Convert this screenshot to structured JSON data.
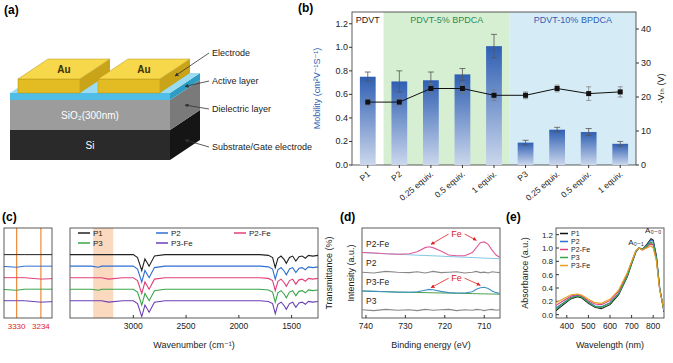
{
  "diagram": {
    "panel": "(a)",
    "layers": [
      {
        "callout": "Electrode",
        "texts": [
          "Au",
          "Au"
        ]
      },
      {
        "callout": "Active layer",
        "texts": []
      },
      {
        "callout": "Dielectric layer",
        "texts": [
          "SiO₂(300nm)"
        ]
      },
      {
        "callout": "Substrate/Gate electrode",
        "texts": [
          "Si"
        ]
      }
    ]
  },
  "chart_data": [
    {
      "panel": "(b)",
      "type": "bar",
      "categories": [
        "P1",
        "P2",
        "0.25 equiv.",
        "0.5 equiv.",
        "1 equiv.",
        "P3",
        "0.25 equiv.",
        "0.5 equiv.",
        "1 equiv."
      ],
      "groups": [
        {
          "label": "PDVT",
          "size": 1,
          "color": "#ffffff"
        },
        {
          "label": "PDVT-5% BPDCA",
          "size": 4,
          "color": "#d6efd2"
        },
        {
          "label": "PDVT-10% BPDCA",
          "size": 4,
          "color": "#d5ecf6"
        }
      ],
      "series": [
        {
          "type": "bar",
          "color": "#2f5fb3",
          "values": [
            0.75,
            0.71,
            0.72,
            0.77,
            1.01,
            0.19,
            0.3,
            0.28,
            0.18
          ],
          "errors": [
            0.04,
            0.09,
            0.07,
            0.05,
            0.1,
            0.02,
            0.02,
            0.03,
            0.02
          ]
        },
        {
          "type": "line",
          "axis": "y2",
          "color": "#111111",
          "marker": "square",
          "values": [
            18.5,
            18.5,
            22.5,
            22.5,
            20.5,
            20.5,
            22.5,
            21,
            21.5
          ],
          "errors": [
            1,
            1,
            1.5,
            1.5,
            1.5,
            1,
            1,
            2,
            1.5
          ]
        }
      ],
      "ylabel": "Mobility (cm²V⁻¹S⁻¹)",
      "y2label": "-Vₜₕ (V)",
      "ylim": [
        0,
        1.3
      ],
      "yticks": [
        {
          "value": 0,
          "label": "0.0"
        },
        0.2,
        0.4,
        0.6,
        0.8,
        {
          "value": 1,
          "label": "1.0"
        },
        1.2
      ],
      "y2lim": [
        0,
        45
      ],
      "y2ticks": [
        0,
        10,
        20,
        30,
        40
      ]
    },
    {
      "panel": "(c)",
      "type": "line",
      "x": [
        3600,
        3400,
        3330,
        3300,
        3234,
        3100,
        3000,
        2960,
        2920,
        2890,
        2850,
        2800,
        2700,
        2400,
        2000,
        1800,
        1720,
        1680,
        1655,
        1630,
        1600,
        1570,
        1550,
        1520,
        1490,
        1460,
        1430,
        1400,
        1370,
        1340,
        1300,
        1250
      ],
      "series": [
        {
          "name": "P1",
          "color": "#222222",
          "values": [
            88,
            88,
            88,
            88,
            88,
            88,
            88,
            84,
            66,
            82,
            72,
            86,
            88,
            88,
            88,
            88,
            87,
            84,
            70,
            83,
            86,
            81,
            76,
            84,
            86,
            79,
            85,
            86,
            83,
            87,
            86,
            87
          ]
        },
        {
          "name": "P2",
          "color": "#2f6fd1",
          "values": [
            72,
            72,
            70.5,
            72,
            72,
            72,
            72,
            68,
            50,
            66,
            56,
            70,
            72,
            72,
            72,
            72,
            71,
            68,
            54,
            67,
            70,
            65,
            60,
            68,
            70,
            63,
            69,
            70,
            67,
            71,
            70,
            71
          ]
        },
        {
          "name": "P2-Fe",
          "color": "#e0407a",
          "values": [
            56,
            56,
            56,
            56,
            54,
            56,
            56,
            52,
            34,
            50,
            40,
            54,
            56,
            56,
            56,
            56,
            55,
            52,
            38,
            51,
            54,
            49,
            44,
            52,
            54,
            47,
            53,
            54,
            51,
            55,
            54,
            55
          ]
        },
        {
          "name": "P3",
          "color": "#3aa64a",
          "values": [
            40,
            40,
            38.5,
            40,
            40,
            40,
            40,
            36,
            18,
            34,
            24,
            38,
            40,
            40,
            40,
            40,
            39,
            36,
            22,
            35,
            38,
            33,
            28,
            36,
            38,
            31,
            37,
            38,
            35,
            39,
            38,
            39
          ]
        },
        {
          "name": "P3-Fe",
          "color": "#6a3fb5",
          "values": [
            24,
            24,
            24,
            24,
            22,
            24,
            24,
            20,
            2,
            18,
            8,
            22,
            24,
            24,
            24,
            24,
            23,
            20,
            6,
            19,
            22,
            17,
            12,
            20,
            22,
            15,
            21,
            22,
            19,
            23,
            22,
            23
          ]
        }
      ],
      "xlabel": "Wavenumber (cm⁻¹)",
      "ylabel": "Transmittance (%)",
      "xlim": [
        3600,
        1250
      ],
      "xticks": [
        3000,
        2500,
        2000,
        1500
      ],
      "ylim": [
        0,
        125
      ],
      "tick_labels": "x",
      "legend": "top",
      "inset": {
        "xlim": [
          3380,
          3190
        ],
        "xticks": [
          3330,
          3234
        ]
      }
    },
    {
      "panel": "(d)",
      "type": "line",
      "x": [
        741,
        738,
        735,
        732,
        729,
        727,
        725,
        724,
        723,
        721,
        719,
        717,
        715,
        713,
        712,
        711,
        710,
        709,
        708,
        707,
        706
      ],
      "series": [
        {
          "name": "P2-Fe",
          "color": "#e05a9a",
          "values": [
            80,
            79.5,
            78.5,
            78,
            78.5,
            81,
            86,
            87,
            86,
            82,
            77,
            76,
            76,
            80,
            86,
            92,
            93,
            90,
            83,
            77,
            74
          ],
          "baseline": [
            80,
            79.3,
            78.6,
            77.9,
            77.3,
            76.8,
            76.4,
            76.2,
            76,
            75.6,
            75.1,
            74.7,
            74.3,
            73.9,
            73.7,
            73.5,
            73.2,
            73,
            72.8,
            72.6,
            72.4
          ]
        },
        {
          "name": "P2",
          "color": "#888888",
          "values": [
            56,
            55,
            57,
            56,
            55.5,
            56.5,
            55,
            56,
            57,
            55.5,
            56,
            56.5,
            55,
            56,
            57,
            55.5,
            56,
            55,
            56.5,
            56,
            55.5
          ]
        },
        {
          "name": "P3-Fe",
          "color": "#3f8fc0",
          "values": [
            33,
            32.5,
            32,
            31.5,
            31.5,
            32,
            34,
            35,
            34.5,
            32.5,
            31,
            30.5,
            30.5,
            32,
            35,
            37,
            37.5,
            36,
            33,
            31,
            30
          ],
          "baseline": [
            33,
            32.6,
            32.2,
            31.8,
            31.4,
            31.2,
            31,
            30.9,
            30.8,
            30.6,
            30.4,
            30.2,
            30,
            29.8,
            29.7,
            29.6,
            29.5,
            29.4,
            29.3,
            29.2,
            29.1
          ]
        },
        {
          "name": "P3",
          "color": "#888888",
          "values": [
            10,
            9,
            10.5,
            9.5,
            10,
            9,
            10.5,
            10,
            9.5,
            10,
            10.5,
            9,
            10,
            9.5,
            10.5,
            10,
            9,
            10,
            10.5,
            9.5,
            10
          ]
        }
      ],
      "xlabel": "Binding energy (eV)",
      "ylabel": "Intensity (a.u.)",
      "xlim": [
        741,
        706
      ],
      "xticks": [
        740,
        730,
        720,
        710
      ],
      "ylim": [
        0,
        110
      ],
      "tick_labels": "x",
      "annotations": [
        {
          "text": "Fe",
          "x": 717,
          "y": 99,
          "arrows": [
            [
              723.5,
              90
            ],
            [
              712,
              95
            ]
          ]
        },
        {
          "text": "Fe",
          "x": 717,
          "y": 45,
          "arrows": [
            [
              723.5,
              37
            ],
            [
              711,
              40
            ]
          ]
        }
      ]
    },
    {
      "panel": "(e)",
      "type": "line",
      "x": [
        350,
        380,
        420,
        450,
        470,
        500,
        530,
        560,
        600,
        640,
        680,
        700,
        720,
        735,
        750,
        770,
        790,
        800,
        815,
        830,
        850
      ],
      "series": [
        {
          "name": "P1",
          "color": "#111111",
          "values": [
            0.06,
            0.14,
            0.24,
            0.27,
            0.25,
            0.17,
            0.11,
            0.09,
            0.15,
            0.3,
            0.57,
            0.76,
            0.94,
            1.0,
            0.98,
            1.05,
            1.14,
            1.12,
            0.88,
            0.4,
            0.04
          ]
        },
        {
          "name": "P2",
          "color": "#2f6fd1",
          "values": [
            0.1,
            0.17,
            0.26,
            0.29,
            0.27,
            0.19,
            0.13,
            0.12,
            0.18,
            0.32,
            0.59,
            0.78,
            0.95,
            1.0,
            0.98,
            1.04,
            1.12,
            1.1,
            0.86,
            0.4,
            0.05
          ]
        },
        {
          "name": "P2-Fe",
          "color": "#e0407a",
          "values": [
            0.14,
            0.2,
            0.28,
            0.3,
            0.28,
            0.21,
            0.16,
            0.15,
            0.21,
            0.35,
            0.61,
            0.79,
            0.96,
            1.0,
            0.97,
            1.01,
            1.07,
            1.04,
            0.82,
            0.38,
            0.06
          ]
        },
        {
          "name": "P3",
          "color": "#3aa64a",
          "values": [
            0.08,
            0.16,
            0.25,
            0.28,
            0.26,
            0.18,
            0.12,
            0.11,
            0.17,
            0.31,
            0.58,
            0.77,
            0.95,
            1.0,
            0.98,
            1.03,
            1.09,
            1.07,
            0.84,
            0.39,
            0.05
          ]
        },
        {
          "name": "P3-Fe",
          "color": "#e8a020",
          "values": [
            0.18,
            0.23,
            0.3,
            0.31,
            0.29,
            0.23,
            0.18,
            0.17,
            0.23,
            0.37,
            0.63,
            0.8,
            0.96,
            1.0,
            0.97,
            1.0,
            1.03,
            1.0,
            0.8,
            0.37,
            0.07
          ]
        }
      ],
      "xlabel": "Wavelength (nm)",
      "ylabel": "Absorbance (a.u.)",
      "xlim": [
        350,
        850
      ],
      "xticks": [
        400,
        500,
        600,
        700,
        800
      ],
      "ylim": [
        -0.05,
        1.3
      ],
      "yticks": [
        {
          "value": 0,
          "label": "0.0"
        },
        0.2,
        0.4,
        0.6,
        0.8,
        {
          "value": 1,
          "label": "1.0"
        },
        1.2
      ],
      "legend": "top-left",
      "annotations": [
        {
          "text": "A₀₋₁",
          "x": 720,
          "y": 1.05
        },
        {
          "text": "A₀₋₀",
          "x": 800,
          "y": 1.22
        }
      ]
    }
  ]
}
